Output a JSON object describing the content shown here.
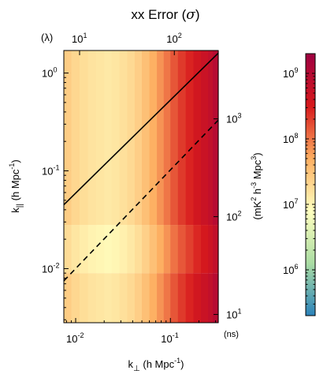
{
  "chart_data": {
    "type": "heatmap",
    "title": "xx Error (σ)",
    "title_main": "xx Error (",
    "title_symbol": "σ",
    "title_close": ")",
    "xlabel": "k⊥ (h Mpc⁻¹)",
    "xlabel_parts": {
      "main": "k",
      "sub": "⊥",
      "rest": " (h Mpc",
      "sup": "-1",
      "close": ")"
    },
    "ylabel": "k|| (h Mpc⁻¹)",
    "ylabel_parts": {
      "main": "k",
      "sub": "||",
      "rest": " (h Mpc",
      "sup": "-1",
      "close": ")"
    },
    "top_axis_label": "(λ)",
    "right_axis_label": "(ns)",
    "colorbar_label": "(mK² h⁻³ Mpc³)",
    "colorbar_label_parts": {
      "a": "(mK",
      "b": "2",
      "c": " h",
      "d": "-3",
      "e": " Mpc",
      "f": "3",
      "g": ")"
    },
    "xscale": "log",
    "yscale": "log",
    "xlim": [
      0.0075,
      0.32
    ],
    "ylim": [
      0.0028,
      1.7
    ],
    "x_ticks": [
      {
        "v": 0.01,
        "base": "10",
        "exp": "-2"
      },
      {
        "v": 0.1,
        "base": "10",
        "exp": "-1"
      }
    ],
    "y_ticks": [
      {
        "v": 0.01,
        "base": "10",
        "exp": "-2"
      },
      {
        "v": 0.1,
        "base": "10",
        "exp": "-1"
      },
      {
        "v": 1,
        "base": "10",
        "exp": "0"
      }
    ],
    "top_ticks": [
      {
        "v": 0.011,
        "base": "10",
        "exp": "1"
      },
      {
        "v": 0.11,
        "base": "10",
        "exp": "2"
      }
    ],
    "right_ticks": [
      {
        "v": 0.0034,
        "base": "10",
        "exp": "1"
      },
      {
        "v": 0.034,
        "base": "10",
        "exp": "2"
      },
      {
        "v": 0.34,
        "base": "10",
        "exp": "3"
      }
    ],
    "colorbar": {
      "scale": "log",
      "range": [
        200000,
        2000000000
      ],
      "ticks": [
        {
          "v": 1000000,
          "base": "10",
          "exp": "6"
        },
        {
          "v": 10000000,
          "base": "10",
          "exp": "7"
        },
        {
          "v": 100000000,
          "base": "10",
          "exp": "8"
        },
        {
          "v": 1000000000,
          "base": "10",
          "exp": "9"
        }
      ],
      "colormap": [
        "#2b83ba",
        "#abdda4",
        "#ffffbf",
        "#fdae61",
        "#d7191c",
        "#9e0142"
      ]
    },
    "heatmap": {
      "x_edges": [
        0.0075,
        0.009,
        0.011,
        0.0135,
        0.0165,
        0.02,
        0.024,
        0.029,
        0.035,
        0.042,
        0.05,
        0.06,
        0.072,
        0.085,
        0.1,
        0.12,
        0.145,
        0.175,
        0.21,
        0.25,
        0.28,
        0.32
      ],
      "column_values": [
        25000000,
        20000000,
        17000000,
        15000000,
        14000000,
        13000000,
        14000000,
        16000000,
        19000000,
        24000000,
        33000000,
        48000000,
        70000000,
        100000000,
        150000000,
        210000000,
        280000000,
        380000000,
        500000000,
        650000000,
        900000000
      ],
      "y_bands": [
        {
          "range": [
            0.0028,
            0.009
          ],
          "factor": 1.0
        },
        {
          "range": [
            0.009,
            0.028
          ],
          "factor": 0.7
        },
        {
          "range": [
            0.028,
            1.7
          ],
          "factor": 1.0
        }
      ]
    },
    "lines": [
      {
        "style": "solid",
        "x": [
          0.0075,
          0.32
        ],
        "y": [
          0.045,
          1.6
        ]
      },
      {
        "style": "dashed",
        "x": [
          0.0075,
          0.32
        ],
        "y": [
          0.0075,
          0.33
        ]
      }
    ]
  }
}
